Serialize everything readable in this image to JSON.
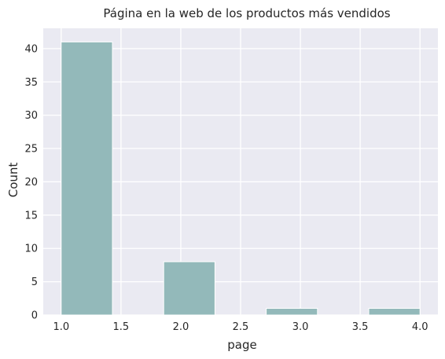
{
  "chart_data": {
    "type": "bar",
    "title": "Página en la web de los productos más vendidos",
    "xlabel": "page",
    "ylabel": "Count",
    "bins": [
      {
        "start": 1.0,
        "end": 1.4286,
        "count": 41
      },
      {
        "start": 1.4286,
        "end": 1.8571,
        "count": 0
      },
      {
        "start": 1.8571,
        "end": 2.2857,
        "count": 8
      },
      {
        "start": 2.2857,
        "end": 2.7143,
        "count": 0
      },
      {
        "start": 2.7143,
        "end": 3.1429,
        "count": 1
      },
      {
        "start": 3.1429,
        "end": 3.5714,
        "count": 0
      },
      {
        "start": 3.5714,
        "end": 4.0,
        "count": 1
      }
    ],
    "xlim": [
      0.85,
      4.15
    ],
    "ylim": [
      0,
      43.05
    ],
    "xticks": [
      "1.0",
      "1.5",
      "2.0",
      "2.5",
      "3.0",
      "3.5",
      "4.0"
    ],
    "yticks": [
      "0",
      "5",
      "10",
      "15",
      "20",
      "25",
      "30",
      "35",
      "40"
    ],
    "grid": true,
    "bar_color": "#93b9ba",
    "background_color": "#eaeaf2"
  }
}
